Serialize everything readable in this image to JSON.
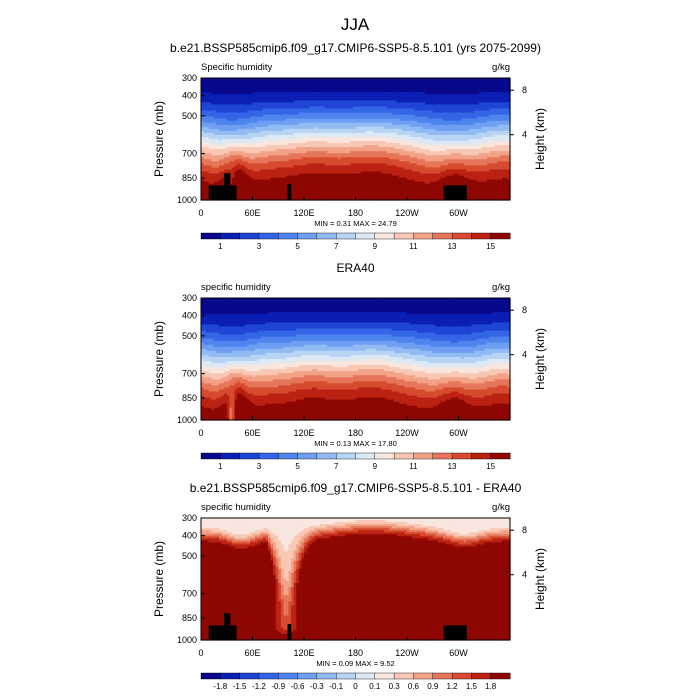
{
  "figure": {
    "title": "JJA"
  },
  "chart_data": [
    {
      "type": "heatmap",
      "title": "b.e21.BSSP585cmip6.f09_g17.CMIP6-SSP5-8.5.101 (yrs 2075-2099)",
      "left_label": "Specific humidity",
      "units": "g/kg",
      "ylabel": "Pressure (mb)",
      "y2label": "Height (km)",
      "x_ticks": [
        "0",
        "60E",
        "120E",
        "180",
        "120W",
        "60W"
      ],
      "y_ticks": [
        "300",
        "400",
        "500",
        "700",
        "850",
        "1000"
      ],
      "y2_ticks": [
        "8",
        "4"
      ],
      "min_max_text": "MIN =   0.31  MAX =  24.79",
      "colorbar_labels": [
        "1",
        "3",
        "5",
        "7",
        "9",
        "11",
        "13",
        "15"
      ],
      "levels": [
        1,
        2,
        3,
        4,
        5,
        6,
        7,
        8,
        9,
        10,
        11,
        12,
        13,
        14,
        15
      ],
      "min": 0.31,
      "max": 24.79,
      "palette": "blue-white-red",
      "surface_mask": true
    },
    {
      "type": "heatmap",
      "title": "ERA40",
      "left_label": "specific humidity",
      "units": "g/kg",
      "ylabel": "Pressure (mb)",
      "y2label": "Height (km)",
      "x_ticks": [
        "0",
        "60E",
        "120E",
        "180",
        "120W",
        "60W"
      ],
      "y_ticks": [
        "300",
        "400",
        "500",
        "700",
        "850",
        "1000"
      ],
      "y2_ticks": [
        "8",
        "4"
      ],
      "min_max_text": "MIN =   0.13  MAX =  17.80",
      "colorbar_labels": [
        "1",
        "3",
        "5",
        "7",
        "9",
        "11",
        "13",
        "15"
      ],
      "levels": [
        1,
        2,
        3,
        4,
        5,
        6,
        7,
        8,
        9,
        10,
        11,
        12,
        13,
        14,
        15
      ],
      "min": 0.13,
      "max": 17.8,
      "palette": "blue-white-red",
      "surface_mask": false
    },
    {
      "type": "heatmap",
      "title": "b.e21.BSSP585cmip6.f09_g17.CMIP6-SSP5-8.5.101 - ERA40",
      "left_label": "specific humidity",
      "units": "g/kg",
      "ylabel": "Pressure (mb)",
      "y2label": "Height (km)",
      "x_ticks": [
        "0",
        "60E",
        "120E",
        "180",
        "120W",
        "60W"
      ],
      "y_ticks": [
        "300",
        "400",
        "500",
        "700",
        "850",
        "1000"
      ],
      "y2_ticks": [
        "8",
        "4"
      ],
      "min_max_text": "MIN =   0.09  MAX =   9.52",
      "colorbar_labels": [
        "-1.8",
        "-1.5",
        "-1.2",
        "-0.9",
        "-0.6",
        "-0.3",
        "-0.1",
        "0",
        "0.1",
        "0.3",
        "0.6",
        "0.9",
        "1.2",
        "1.5",
        "1.8"
      ],
      "levels": [
        -1.8,
        -1.5,
        -1.2,
        -0.9,
        -0.6,
        -0.3,
        -0.1,
        0,
        0.1,
        0.3,
        0.6,
        0.9,
        1.2,
        1.5,
        1.8
      ],
      "min": 0.09,
      "max": 9.52,
      "palette": "blue-white-red",
      "surface_mask": true
    }
  ],
  "palette_colors": [
    "#08088c",
    "#0b1fb5",
    "#1f45d6",
    "#3565e6",
    "#4f84ee",
    "#6e9ff2",
    "#92bbf4",
    "#b8d4f5",
    "#dde8f5",
    "#f8e6df",
    "#f8c8b4",
    "#f2a286",
    "#e6765a",
    "#d64a30",
    "#bb2212",
    "#8e0703"
  ]
}
